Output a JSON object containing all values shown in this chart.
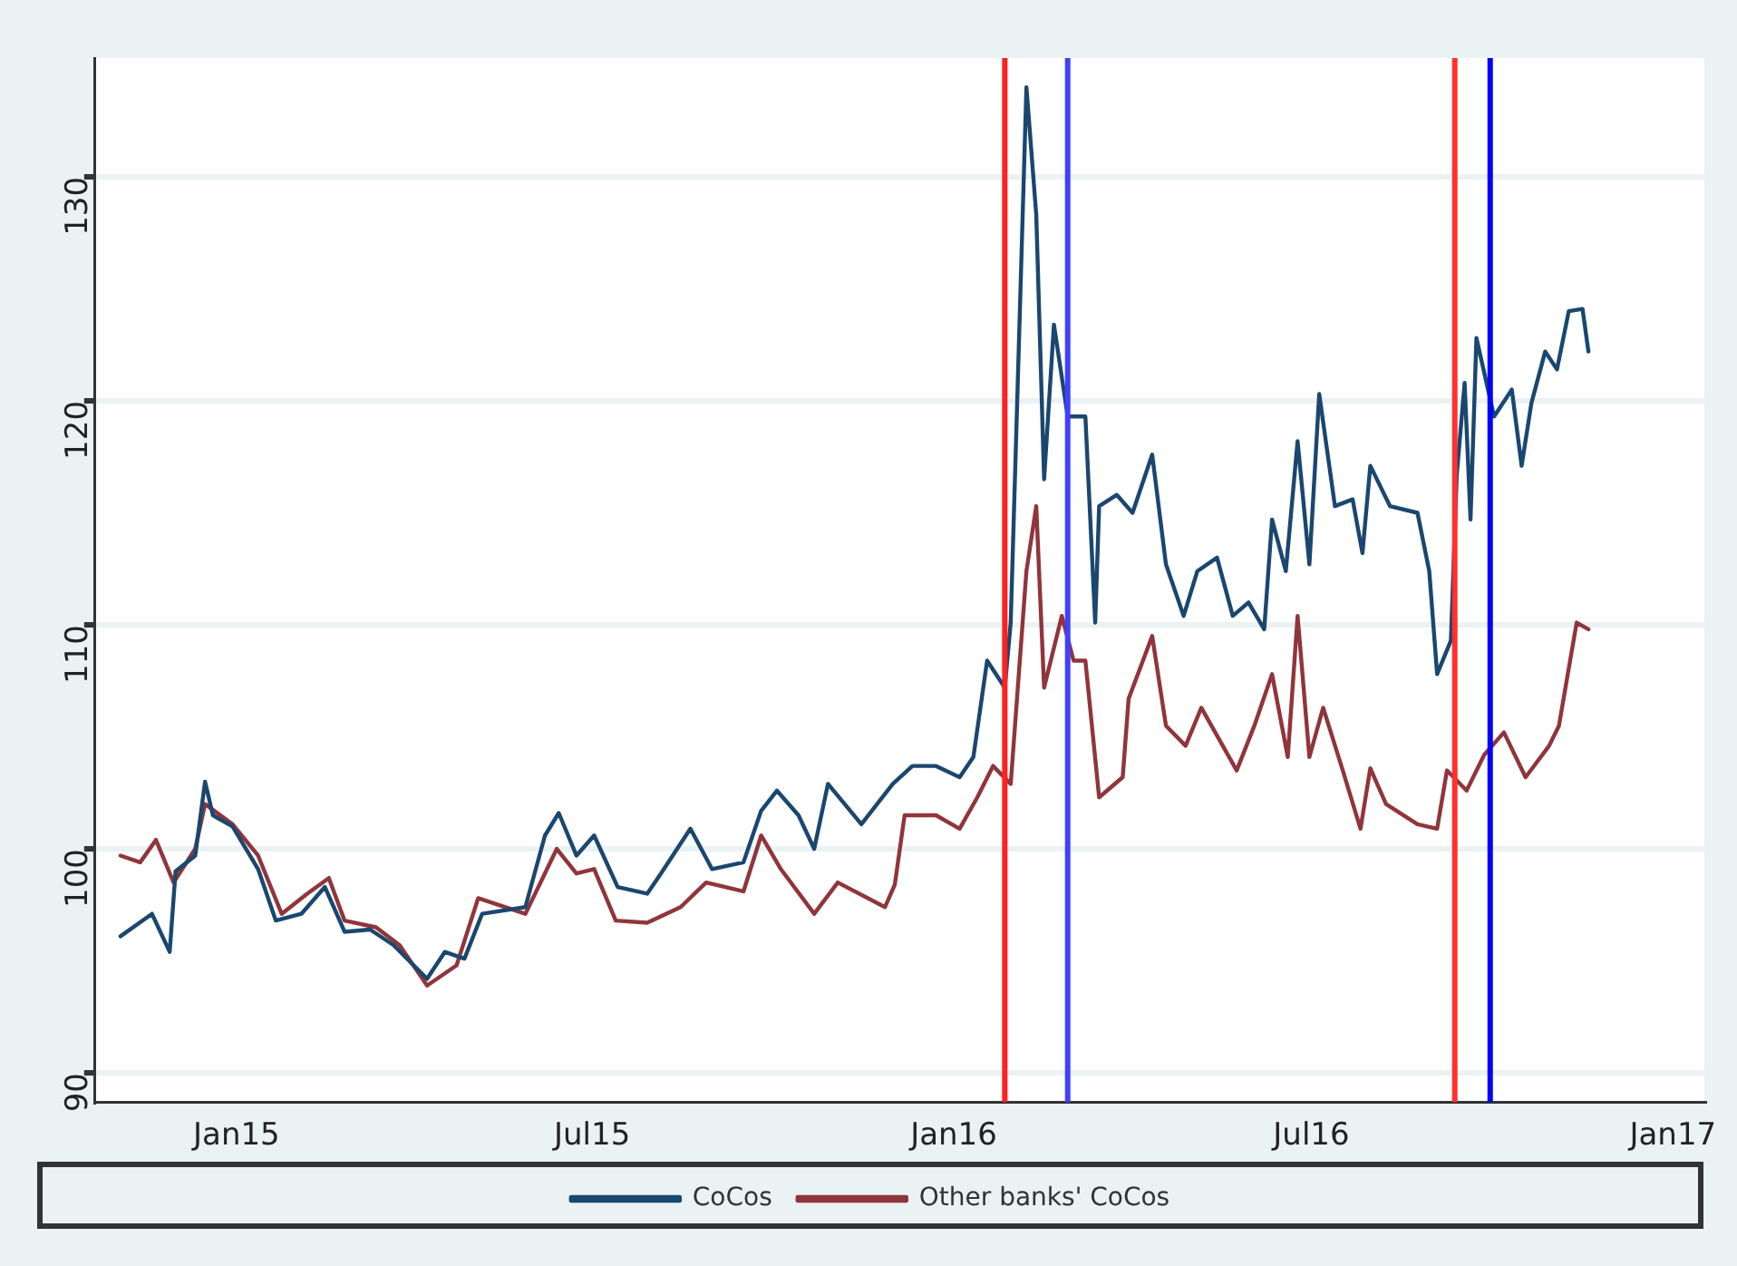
{
  "chart_data": {
    "type": "line",
    "xlim": [
      "2014-10-21",
      "2017-01-17"
    ],
    "ylim": [
      88.7,
      135.3
    ],
    "xticks": [
      {
        "value": "2015-01-01",
        "label": "Jan15"
      },
      {
        "value": "2015-07-01",
        "label": "Jul15"
      },
      {
        "value": "2016-01-01",
        "label": "Jan16"
      },
      {
        "value": "2016-07-01",
        "label": "Jul16"
      },
      {
        "value": "2017-01-01",
        "label": "Jan17"
      }
    ],
    "yticks": [
      90,
      100,
      110,
      120,
      130
    ],
    "grid": "y",
    "legend": "bottom",
    "marker": "none",
    "line_style": "solid",
    "ref_lines": [
      {
        "axis": "x",
        "value": "2016-01-27",
        "color": "#ff2020"
      },
      {
        "axis": "x",
        "value": "2016-02-28",
        "color": "#4040ff"
      },
      {
        "axis": "x",
        "value": "2016-09-12",
        "color": "#ff3030"
      },
      {
        "axis": "x",
        "value": "2016-09-30",
        "color": "#0000ff"
      }
    ],
    "series": [
      {
        "name": "CoCos",
        "color": "#1a476f",
        "x": [
          "2014-11-03",
          "2014-11-19",
          "2014-11-28",
          "2014-12-01",
          "2014-12-11",
          "2014-12-16",
          "2014-12-20",
          "2014-12-30",
          "2015-01-12",
          "2015-01-21",
          "2015-02-03",
          "2015-02-15",
          "2015-02-25",
          "2015-03-10",
          "2015-03-22",
          "2015-04-08",
          "2015-04-17",
          "2015-04-27",
          "2015-05-06",
          "2015-05-28",
          "2015-06-07",
          "2015-06-14",
          "2015-06-23",
          "2015-07-02",
          "2015-07-14",
          "2015-07-29",
          "2015-08-05",
          "2015-08-20",
          "2015-08-31",
          "2015-09-16",
          "2015-09-25",
          "2015-10-03",
          "2015-10-14",
          "2015-10-22",
          "2015-10-29",
          "2015-11-15",
          "2015-12-01",
          "2015-12-11",
          "2015-12-23",
          "2016-01-04",
          "2016-01-11",
          "2016-01-18",
          "2016-01-27",
          "2016-01-30",
          "2016-02-07",
          "2016-02-12",
          "2016-02-16",
          "2016-02-21",
          "2016-02-28",
          "2016-03-08",
          "2016-03-13",
          "2016-03-15",
          "2016-03-24",
          "2016-04-01",
          "2016-04-11",
          "2016-04-18",
          "2016-04-27",
          "2016-05-04",
          "2016-05-14",
          "2016-05-22",
          "2016-05-30",
          "2016-06-07",
          "2016-06-11",
          "2016-06-18",
          "2016-06-24",
          "2016-06-30",
          "2016-07-05",
          "2016-07-13",
          "2016-07-22",
          "2016-07-27",
          "2016-07-31",
          "2016-08-10",
          "2016-08-24",
          "2016-08-30",
          "2016-09-03",
          "2016-09-10",
          "2016-09-13",
          "2016-09-17",
          "2016-09-20",
          "2016-09-23",
          "2016-10-02",
          "2016-10-11",
          "2016-10-16",
          "2016-10-21",
          "2016-10-28",
          "2016-11-03",
          "2016-11-09",
          "2016-11-16",
          "2016-11-19"
        ],
        "values": [
          96.1,
          97.1,
          95.4,
          99.0,
          99.7,
          103.0,
          101.5,
          101.0,
          99.1,
          96.8,
          97.1,
          98.3,
          96.3,
          96.4,
          95.7,
          94.2,
          95.4,
          95.1,
          97.1,
          97.4,
          100.6,
          101.6,
          99.7,
          100.6,
          98.3,
          98.0,
          98.9,
          100.9,
          99.1,
          99.4,
          101.7,
          102.6,
          101.5,
          100.0,
          102.9,
          101.1,
          102.9,
          103.7,
          103.7,
          103.2,
          104.1,
          108.4,
          107.2,
          110.1,
          134.0,
          128.3,
          116.5,
          123.4,
          119.3,
          119.3,
          110.1,
          115.3,
          115.8,
          115.0,
          117.6,
          112.7,
          110.4,
          112.4,
          113.0,
          110.4,
          111.0,
          109.8,
          114.7,
          112.4,
          118.2,
          112.7,
          120.3,
          115.3,
          115.6,
          113.2,
          117.1,
          115.3,
          115.0,
          112.4,
          107.8,
          109.3,
          116.7,
          120.8,
          114.7,
          122.8,
          119.3,
          120.5,
          117.1,
          119.9,
          122.2,
          121.4,
          124.0,
          124.1,
          122.2
        ]
      },
      {
        "name": "Other banks' CoCos",
        "color": "#90353b",
        "x": [
          "2014-11-03",
          "2014-11-13",
          "2014-11-21",
          "2014-11-30",
          "2014-12-11",
          "2014-12-16",
          "2014-12-30",
          "2015-01-12",
          "2015-01-24",
          "2015-02-06",
          "2015-02-17",
          "2015-02-25",
          "2015-03-13",
          "2015-03-25",
          "2015-04-08",
          "2015-04-23",
          "2015-05-04",
          "2015-05-28",
          "2015-06-13",
          "2015-06-23",
          "2015-07-02",
          "2015-07-13",
          "2015-07-29",
          "2015-08-15",
          "2015-08-28",
          "2015-09-16",
          "2015-09-25",
          "2015-10-05",
          "2015-10-22",
          "2015-11-03",
          "2015-11-27",
          "2015-12-02",
          "2015-12-07",
          "2015-12-23",
          "2016-01-04",
          "2016-01-13",
          "2016-01-21",
          "2016-01-30",
          "2016-02-07",
          "2016-02-12",
          "2016-02-16",
          "2016-02-25",
          "2016-03-02",
          "2016-03-08",
          "2016-03-15",
          "2016-03-27",
          "2016-03-30",
          "2016-04-11",
          "2016-04-18",
          "2016-04-28",
          "2016-05-06",
          "2016-05-24",
          "2016-06-02",
          "2016-06-11",
          "2016-06-19",
          "2016-06-24",
          "2016-06-30",
          "2016-07-07",
          "2016-07-17",
          "2016-07-26",
          "2016-07-31",
          "2016-08-08",
          "2016-08-24",
          "2016-09-03",
          "2016-09-08",
          "2016-09-18",
          "2016-09-27",
          "2016-10-07",
          "2016-10-18",
          "2016-10-30",
          "2016-11-04",
          "2016-11-13",
          "2016-11-19"
        ],
        "values": [
          99.7,
          99.4,
          100.4,
          98.5,
          100.0,
          102.0,
          101.1,
          99.7,
          97.1,
          98.0,
          98.7,
          96.8,
          96.5,
          95.7,
          93.9,
          94.8,
          97.8,
          97.1,
          100.0,
          98.9,
          99.1,
          96.8,
          96.7,
          97.4,
          98.5,
          98.1,
          100.6,
          99.1,
          97.1,
          98.5,
          97.4,
          98.4,
          101.5,
          101.5,
          100.9,
          102.3,
          103.7,
          102.9,
          112.4,
          115.3,
          107.2,
          110.4,
          108.4,
          108.4,
          102.3,
          103.2,
          106.7,
          109.5,
          105.5,
          104.6,
          106.3,
          103.5,
          105.5,
          107.8,
          104.1,
          110.4,
          104.1,
          106.3,
          103.5,
          100.9,
          103.6,
          102.0,
          101.1,
          100.9,
          103.5,
          102.6,
          104.2,
          105.2,
          103.2,
          104.6,
          105.5,
          110.1,
          109.8
        ]
      }
    ]
  }
}
